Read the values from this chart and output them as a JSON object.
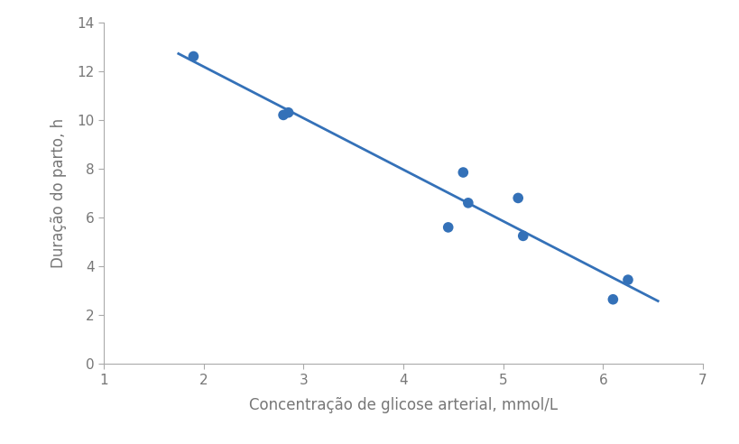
{
  "x_data": [
    1.9,
    2.8,
    2.85,
    4.45,
    4.6,
    4.65,
    5.15,
    5.2,
    6.1,
    6.25
  ],
  "y_data": [
    12.6,
    10.2,
    10.3,
    5.6,
    7.85,
    6.6,
    6.8,
    5.25,
    2.65,
    3.45
  ],
  "line_x_start": 1.75,
  "line_x_end": 6.55,
  "dot_color": "#3471B8",
  "line_color": "#3471B8",
  "xlabel": "Concentração de glicose arterial, mmol/L",
  "ylabel": "Duração do parto, h",
  "xlim": [
    1,
    7
  ],
  "ylim": [
    0,
    14
  ],
  "xticks": [
    1,
    2,
    3,
    4,
    5,
    6,
    7
  ],
  "yticks": [
    0,
    2,
    4,
    6,
    8,
    10,
    12,
    14
  ],
  "marker_size": 70,
  "label_fontsize": 12,
  "tick_fontsize": 11,
  "tick_color": "#777777",
  "spine_color": "#aaaaaa",
  "background_color": "#ffffff"
}
